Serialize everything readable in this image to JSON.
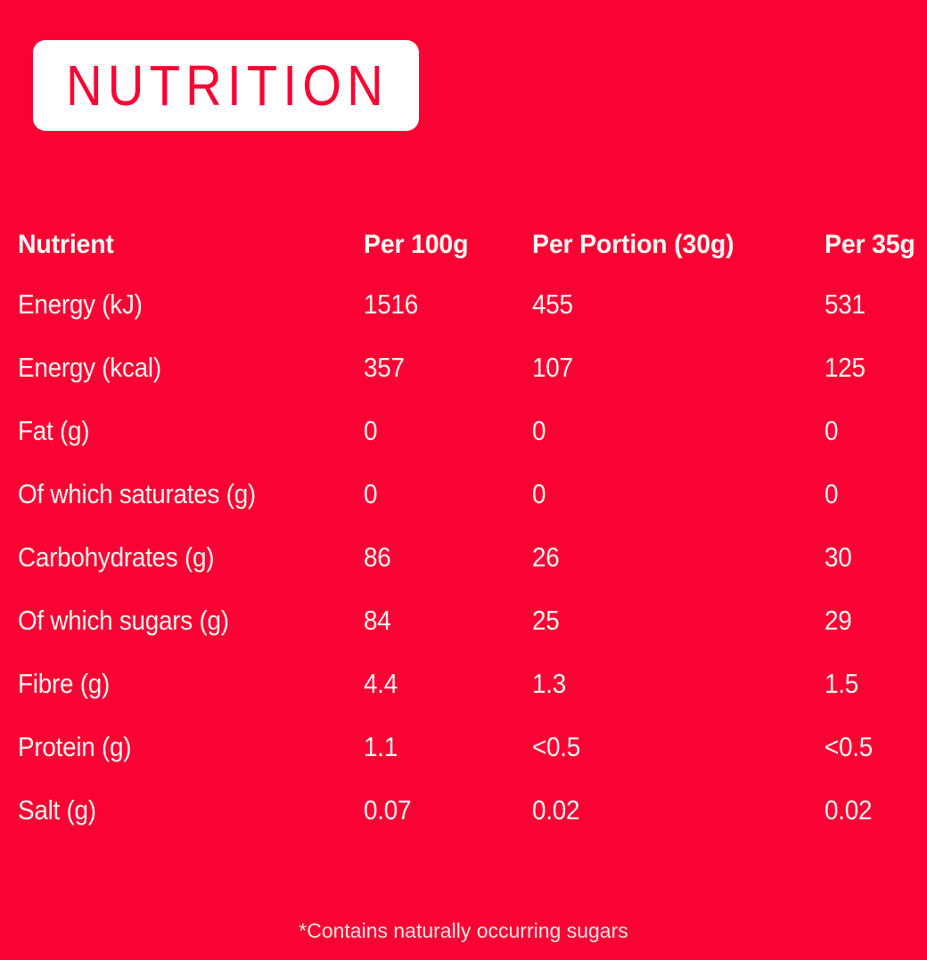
{
  "colors": {
    "background": "#FA0233",
    "badge_background": "#FFFFFF",
    "badge_text": "#FA0233",
    "table_text": "#FBF3EF"
  },
  "badge": {
    "title": "NUTRITION"
  },
  "table": {
    "headers": [
      "Nutrient",
      "Per 100g",
      "Per Portion (30g)",
      "Per 35g"
    ],
    "rows": [
      {
        "label": "Energy (kJ)",
        "values": [
          "1516",
          "455",
          "531"
        ]
      },
      {
        "label": "Energy (kcal)",
        "values": [
          "357",
          "107",
          "125"
        ]
      },
      {
        "label": "Fat (g)",
        "values": [
          "0",
          "0",
          "0"
        ]
      },
      {
        "label": "Of which saturates (g)",
        "values": [
          "0",
          "0",
          "0"
        ]
      },
      {
        "label": "Carbohydrates (g)",
        "values": [
          "86",
          "26",
          "30"
        ]
      },
      {
        "label": "Of which sugars (g)",
        "values": [
          "84",
          "25",
          "29"
        ]
      },
      {
        "label": "Fibre (g)",
        "values": [
          "4.4",
          "1.3",
          "1.5"
        ]
      },
      {
        "label": "Protein (g)",
        "values": [
          "1.1",
          "<0.5",
          "<0.5"
        ]
      },
      {
        "label": "Salt (g)",
        "values": [
          "0.07",
          "0.02",
          "0.02"
        ]
      }
    ]
  },
  "footnote": "*Contains naturally occurring sugars"
}
